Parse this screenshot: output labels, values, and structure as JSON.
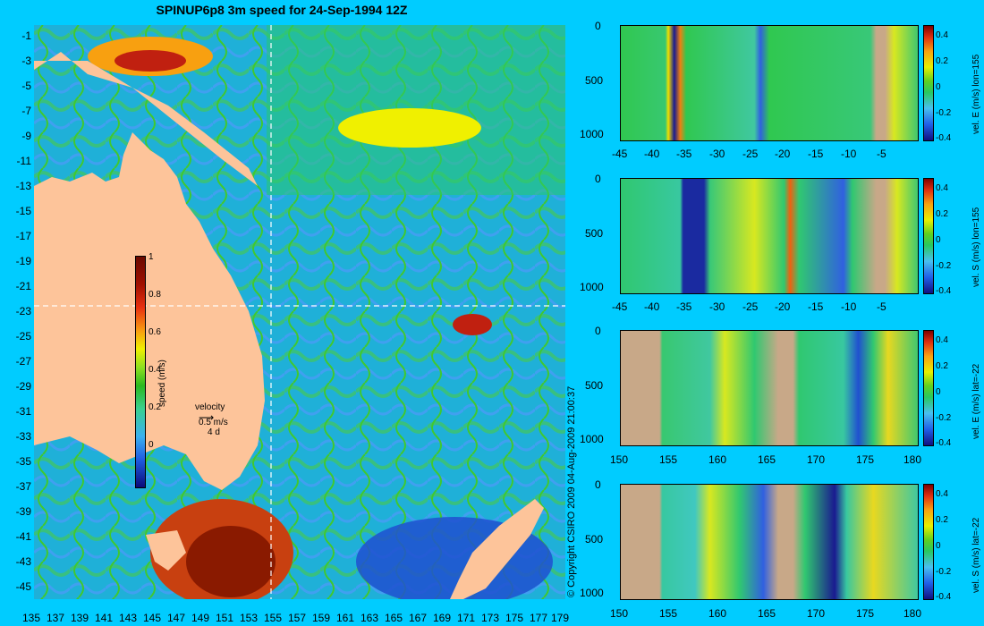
{
  "title": "SPINUP6p8 3m speed for 24-Sep-1994 12Z",
  "map": {
    "y_ticks": [
      "-1",
      "-3",
      "-5",
      "-7",
      "-9",
      "-11",
      "-13",
      "-15",
      "-17",
      "-19",
      "-21",
      "-23",
      "-25",
      "-27",
      "-29",
      "-31",
      "-33",
      "-35",
      "-37",
      "-39",
      "-41",
      "-43",
      "-45"
    ],
    "x_ticks": [
      "135",
      "137",
      "139",
      "141",
      "143",
      "145",
      "147",
      "149",
      "151",
      "153",
      "155",
      "157",
      "159",
      "161",
      "163",
      "165",
      "167",
      "169",
      "171",
      "173",
      "175",
      "177",
      "179"
    ],
    "colorbar": {
      "ticks": [
        "1",
        "0.8",
        "0.6",
        "0.4",
        "0.2",
        "0"
      ],
      "label": "speed (m/s)"
    },
    "velocity_key": {
      "label": "velocity",
      "speed": "0.5 m/s",
      "duration": "4 d"
    },
    "copyright": "© Copyright CSIRO 2009   04-Aug-2009 21:00:37",
    "colors": {
      "land": "#fdc49a",
      "background": "#00ccff"
    }
  },
  "panels": [
    {
      "id": "p1",
      "label": "vel. E (m/s) lon=155",
      "x_ticks": [
        "-45",
        "-40",
        "-35",
        "-30",
        "-25",
        "-20",
        "-15",
        "-10",
        "-5"
      ],
      "y_ticks": [
        "0",
        "500",
        "1000"
      ],
      "cbar_ticks": [
        "0.4",
        "0.2",
        "0",
        "-0.2",
        "-0.4"
      ]
    },
    {
      "id": "p2",
      "label": "vel. S (m/s) lon=155",
      "x_ticks": [
        "-45",
        "-40",
        "-35",
        "-30",
        "-25",
        "-20",
        "-15",
        "-10",
        "-5"
      ],
      "y_ticks": [
        "0",
        "500",
        "1000"
      ],
      "cbar_ticks": [
        "0.4",
        "0.2",
        "0",
        "-0.2",
        "-0.4"
      ]
    },
    {
      "id": "p3",
      "label": "vel. E (m/s) lat=-22",
      "x_ticks": [
        "150",
        "155",
        "160",
        "165",
        "170",
        "175",
        "180"
      ],
      "y_ticks": [
        "0",
        "500",
        "1000"
      ],
      "cbar_ticks": [
        "0.4",
        "0.2",
        "0",
        "-0.2",
        "-0.4"
      ]
    },
    {
      "id": "p4",
      "label": "vel. S (m/s) lat=-22",
      "x_ticks": [
        "150",
        "155",
        "160",
        "165",
        "170",
        "175",
        "180"
      ],
      "y_ticks": [
        "0",
        "500",
        "1000"
      ],
      "cbar_ticks": [
        "0.4",
        "0.2",
        "0",
        "-0.2",
        "-0.4"
      ]
    }
  ]
}
